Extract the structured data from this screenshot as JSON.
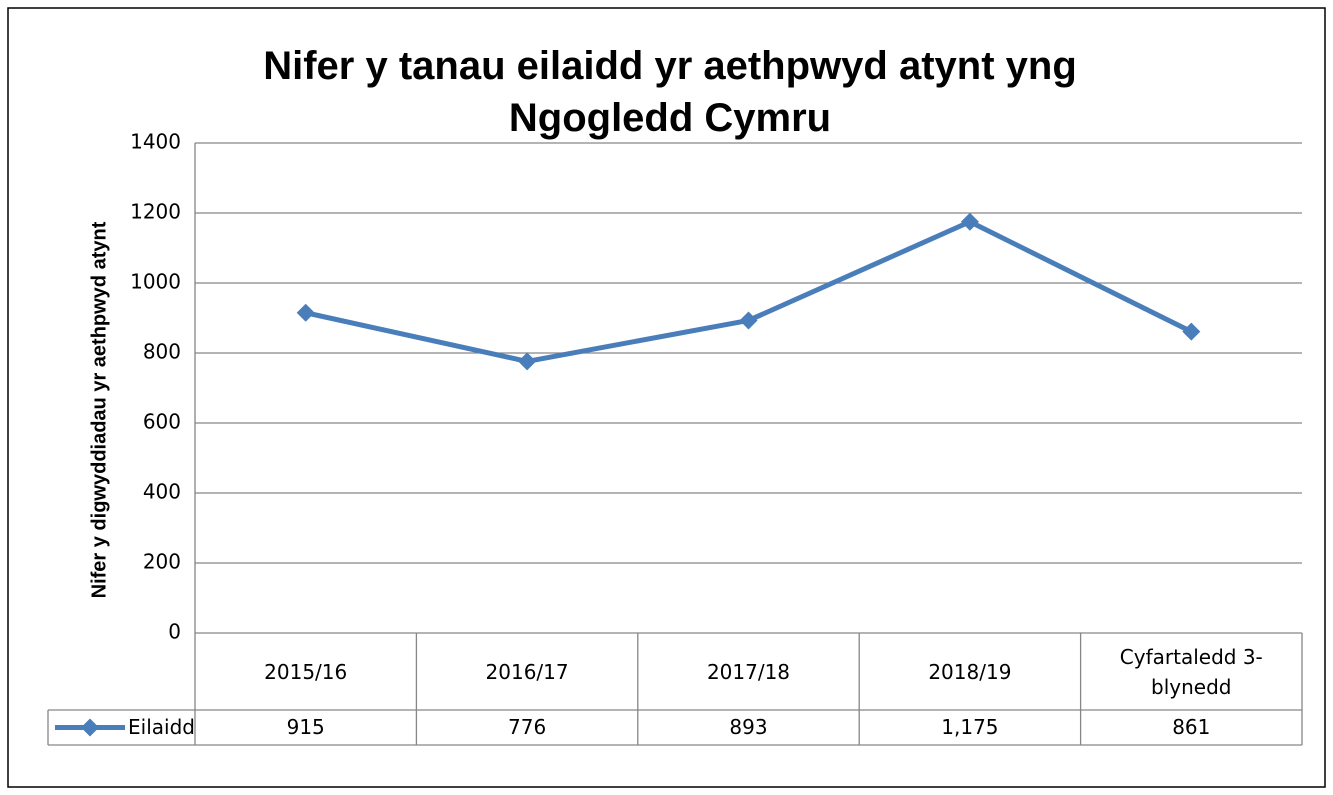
{
  "chart_data": {
    "type": "line",
    "title": "Nifer y tanau eilaidd yr aethpwyd atynt yng Ngogledd Cymru",
    "y_label": "Nifer y digwyddiadau yr aethpwyd atynt",
    "categories": [
      "2015/16",
      "2016/17",
      "2017/18",
      "2018/19",
      "Cyfartaledd 3-blynedd"
    ],
    "series": [
      {
        "name": "Eilaidd",
        "color": "#4a7ebb",
        "values": [
          915,
          776,
          893,
          1175,
          861
        ],
        "value_labels": [
          "915",
          "776",
          "893",
          "1,175",
          "861"
        ]
      }
    ],
    "ylim": [
      0,
      1400
    ],
    "yticks": [
      0,
      200,
      400,
      600,
      800,
      1000,
      1200,
      1400
    ],
    "grid": true,
    "data_table": true
  }
}
